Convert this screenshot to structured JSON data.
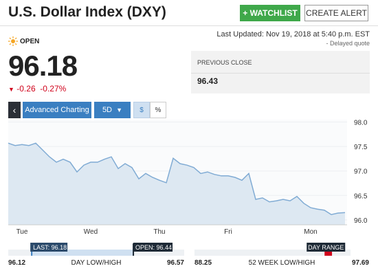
{
  "header": {
    "title": "U.S. Dollar Index (DXY)",
    "watchlist_button": "+ WATCHLIST",
    "alert_button": "CREATE ALERT",
    "last_updated": "Last Updated: Nov 19, 2018 at 5:40 p.m. EST",
    "delayed": "-  Delayed quote"
  },
  "quote": {
    "status": "OPEN",
    "price": 96.18,
    "change": -0.26,
    "change_percent": "-0.27%",
    "previous_close_label": "PREVIOUS CLOSE",
    "previous_close": 96.43
  },
  "toolbar": {
    "back": "‹",
    "advanced": "Advanced Charting",
    "period": "5D",
    "dollar": "$",
    "percent": "%"
  },
  "chart_data": {
    "type": "line",
    "color": "#80abd4",
    "fill": "#dde8f2",
    "categories": [
      null,
      null,
      "Tue",
      null,
      null,
      null,
      null,
      null,
      null,
      null,
      null,
      null,
      "Wed",
      null,
      null,
      null,
      null,
      null,
      null,
      null,
      null,
      null,
      "Thu",
      null,
      null,
      null,
      null,
      null,
      null,
      null,
      null,
      null,
      "Fri",
      null,
      null,
      null,
      null,
      null,
      null,
      null,
      null,
      null,
      null,
      null,
      "Mon",
      null,
      null,
      null,
      null,
      null
    ],
    "values": [
      97.57,
      97.52,
      97.54,
      97.52,
      97.57,
      97.43,
      97.29,
      97.18,
      97.24,
      97.18,
      96.98,
      97.12,
      97.18,
      97.18,
      97.24,
      97.29,
      97.05,
      97.15,
      97.07,
      96.84,
      96.95,
      96.87,
      96.81,
      96.76,
      97.26,
      97.15,
      97.12,
      97.07,
      96.95,
      96.98,
      96.93,
      96.9,
      96.9,
      96.87,
      96.81,
      96.95,
      96.42,
      96.45,
      96.37,
      96.39,
      96.42,
      96.39,
      96.48,
      96.34,
      96.25,
      96.22,
      96.2,
      96.11,
      96.14,
      96.15
    ],
    "ylim": [
      95.9,
      98.05
    ],
    "yticks": [
      {
        "value": 98,
        "label": "98.0"
      },
      97.5,
      {
        "value": 97,
        "label": "97.0"
      },
      96.5,
      {
        "value": 96,
        "label": "96.0"
      }
    ]
  },
  "day_range": {
    "low": 96.12,
    "high": 96.57,
    "caption": "DAY LOW/HIGH",
    "last": {
      "value": 96.18,
      "label": "LAST: 96.18"
    },
    "open": {
      "value": 96.44,
      "label": "OPEN: 96.44"
    }
  },
  "week52_range": {
    "low": 88.25,
    "high": 97.69,
    "caption": "52 WEEK LOW/HIGH",
    "marker": "DAY RANGE"
  }
}
